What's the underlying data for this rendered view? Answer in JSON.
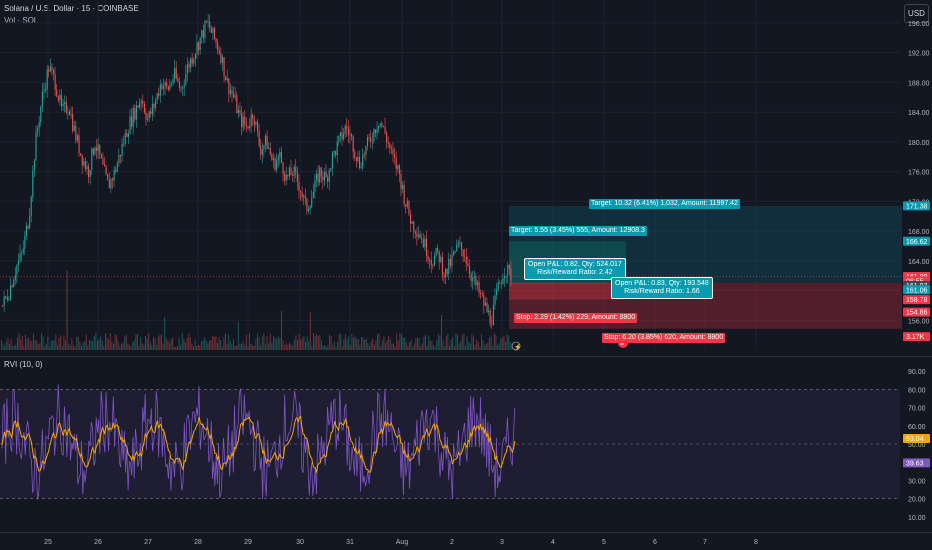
{
  "header": {
    "symbol_title": "Solana / U.S. Dollar · 15 · COINBASE",
    "volume_label": "Vol · SOL",
    "currency_button": "USD"
  },
  "price_axis": {
    "ticks": [
      "196.00",
      "192.00",
      "188.00",
      "184.00",
      "180.00",
      "176.00",
      "172.00",
      "168.00",
      "164.00",
      "160.00",
      "156.00"
    ],
    "tags": [
      {
        "text": "171.38",
        "color": "#089bb0",
        "value": 171.38
      },
      {
        "text": "166.62",
        "color": "#089bb0",
        "value": 166.62
      },
      {
        "text": "161.89",
        "color": "#f23645",
        "value": 161.89
      },
      {
        "text": "06:55",
        "color": "#f23645",
        "value": 161.3
      },
      {
        "text": "161.07",
        "color": "#434651",
        "value": 160.7
      },
      {
        "text": "161.06",
        "color": "#089bb0",
        "value": 160.1
      },
      {
        "text": "158.78",
        "color": "#f23645",
        "value": 158.78
      },
      {
        "text": "154.86",
        "color": "#f23645",
        "value": 157.1
      },
      {
        "text": "3.17K",
        "color": "#f23645",
        "value": 153.8
      }
    ]
  },
  "positions": {
    "target_a": "Target: 10.32 (6.41%) 1,032, Amount: 11997.42",
    "target_b": "Target: 5.55 (3.45%) 555, Amount: 12908.3",
    "open_a_line1": "Open P&L: 0.82, Qty: 524.017",
    "open_a_line2": "Risk/Reward Ratio: 2.42",
    "open_b_line1": "Open P&L: 0.83, Qty: 193.548",
    "open_b_line2": "Risk/Reward Ratio: 1.66",
    "stop_a": "Stop: 2.29 (1.42%) 229, Amount: 8800",
    "stop_b": "Stop: 6.20 (3.85%) 620, Amount: 8800"
  },
  "rvi": {
    "title": "RVI (10, 0)",
    "ticks": [
      "90.00",
      "80.00",
      "70.00",
      "60.00",
      "50.00",
      "40.00",
      "30.00",
      "20.00",
      "10.00"
    ],
    "value_tag": "53.04",
    "value_tag_color": "#f7a600",
    "value": 53.04,
    "signal_tag": "39.63",
    "signal_tag_color": "#7e57c2",
    "signal": 39.63
  },
  "time_axis": {
    "labels": [
      "25",
      "26",
      "27",
      "28",
      "29",
      "30",
      "31",
      "Aug",
      "2",
      "3",
      "4",
      "5",
      "6",
      "7",
      "8"
    ]
  },
  "colors": {
    "up": "#26a69a",
    "down": "#ef5350",
    "rvi": "#7e57c2",
    "rvi_signal": "#f7a600",
    "background": "#131722"
  },
  "chart_data": {
    "type": "candlestick",
    "ylim": [
      152,
      198
    ],
    "close_series": [
      158,
      160,
      163,
      165,
      170,
      180,
      186,
      190,
      188,
      184,
      185,
      181,
      178,
      176,
      180,
      177,
      174,
      176,
      179,
      182,
      184,
      186,
      183,
      185,
      188,
      187,
      189,
      187,
      190,
      192,
      194,
      196,
      194,
      192,
      188,
      186,
      183,
      182,
      184,
      179,
      180,
      177,
      178,
      175,
      176,
      174,
      171,
      173,
      176,
      175,
      178,
      180,
      182,
      180,
      177,
      179,
      181,
      183,
      181,
      178,
      176,
      172,
      169,
      168,
      166,
      164,
      165,
      162,
      164,
      166,
      165,
      162,
      160,
      158,
      156,
      160,
      163,
      162
    ]
  }
}
